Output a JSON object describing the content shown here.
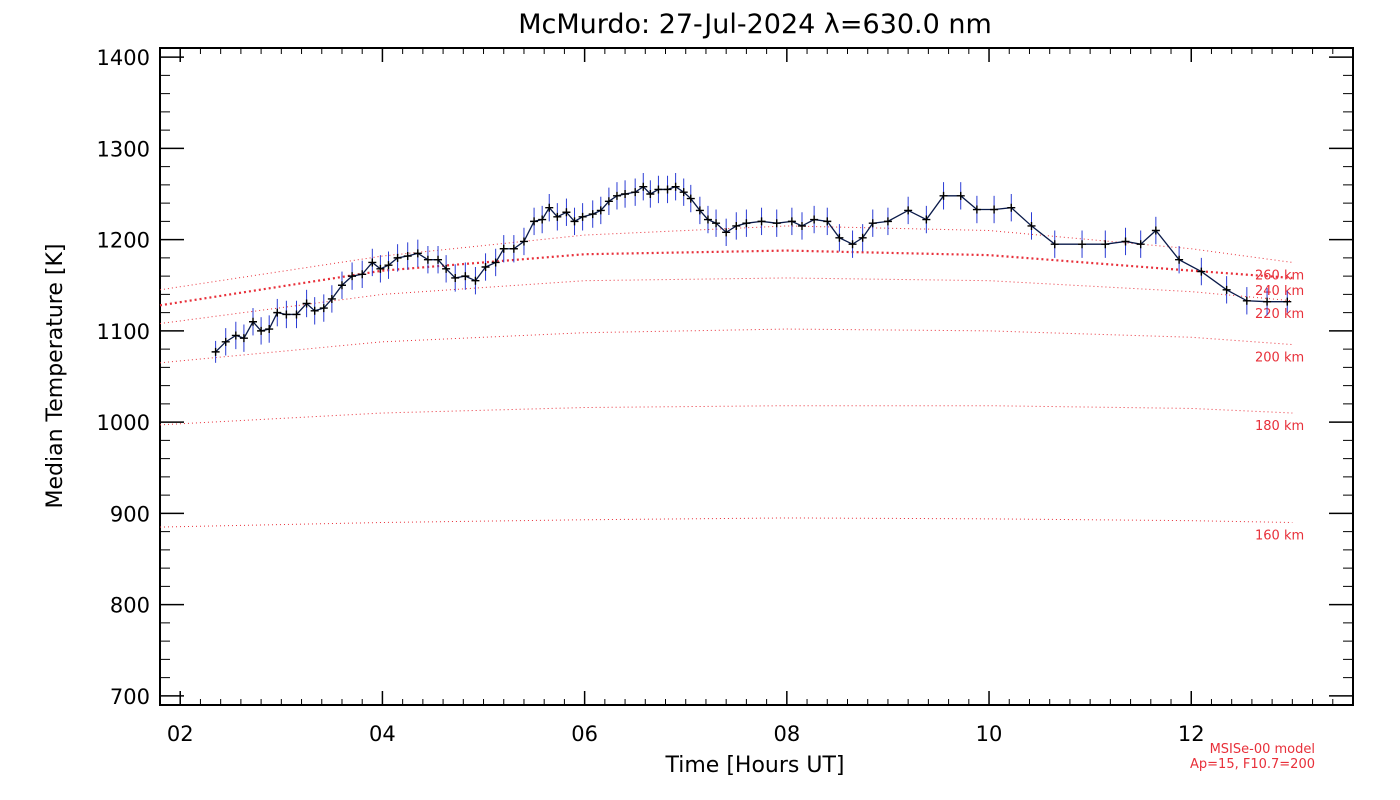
{
  "chart_data": {
    "type": "line",
    "title": "McMurdo: 27-Jul-2024 λ=630.0 nm",
    "xlabel": "Time [Hours UT]",
    "ylabel": "Median Temperature [K]",
    "xlim": [
      1.8,
      13.6
    ],
    "ylim": [
      690,
      1410
    ],
    "xticks": [
      2,
      4,
      6,
      8,
      10,
      12
    ],
    "xtick_labels": [
      "02",
      "04",
      "06",
      "08",
      "10",
      "12"
    ],
    "yticks": [
      700,
      800,
      900,
      1000,
      1100,
      1200,
      1300,
      1400
    ],
    "ytick_labels": [
      "700",
      "800",
      "900",
      "1000",
      "1100",
      "1200",
      "1300",
      "1400"
    ],
    "grid": false,
    "series": [
      {
        "name": "",
        "color": "#0a1a4a",
        "error_color": "#2a3bd4",
        "x": [
          2.35,
          2.45,
          2.55,
          2.63,
          2.72,
          2.8,
          2.88,
          2.96,
          3.05,
          3.15,
          3.25,
          3.33,
          3.42,
          3.5,
          3.6,
          3.7,
          3.8,
          3.9,
          3.98,
          4.06,
          4.15,
          4.25,
          4.35,
          4.45,
          4.55,
          4.63,
          4.72,
          4.82,
          4.92,
          5.02,
          5.12,
          5.2,
          5.3,
          5.4,
          5.5,
          5.58,
          5.65,
          5.73,
          5.82,
          5.9,
          5.98,
          6.08,
          6.16,
          6.24,
          6.32,
          6.4,
          6.5,
          6.58,
          6.65,
          6.73,
          6.82,
          6.9,
          6.98,
          7.05,
          7.14,
          7.22,
          7.3,
          7.4,
          7.5,
          7.6,
          7.75,
          7.9,
          8.05,
          8.15,
          8.27,
          8.4,
          8.52,
          8.65,
          8.75,
          8.85,
          9.0,
          9.2,
          9.38,
          9.55,
          9.72,
          9.88,
          10.05,
          10.22,
          10.42,
          10.65,
          10.92,
          11.15,
          11.35,
          11.5,
          11.65,
          11.88,
          12.1,
          12.35,
          12.55,
          12.75,
          12.95
        ],
        "y": [
          1077,
          1088,
          1095,
          1092,
          1110,
          1100,
          1102,
          1120,
          1118,
          1118,
          1130,
          1122,
          1125,
          1135,
          1150,
          1160,
          1162,
          1175,
          1168,
          1172,
          1180,
          1182,
          1185,
          1178,
          1178,
          1168,
          1158,
          1160,
          1155,
          1170,
          1175,
          1190,
          1190,
          1198,
          1220,
          1222,
          1235,
          1225,
          1230,
          1220,
          1225,
          1228,
          1232,
          1242,
          1248,
          1250,
          1252,
          1258,
          1250,
          1255,
          1255,
          1258,
          1252,
          1245,
          1232,
          1222,
          1218,
          1208,
          1215,
          1218,
          1220,
          1218,
          1220,
          1215,
          1222,
          1220,
          1202,
          1195,
          1202,
          1218,
          1220,
          1232,
          1222,
          1248,
          1248,
          1233,
          1233,
          1235,
          1215,
          1195,
          1195,
          1195,
          1198,
          1195,
          1210,
          1178,
          1165,
          1145,
          1133,
          1132,
          1132
        ],
        "err": [
          12,
          15,
          15,
          15,
          15,
          15,
          15,
          15,
          15,
          15,
          15,
          15,
          15,
          15,
          15,
          15,
          15,
          15,
          15,
          15,
          15,
          15,
          15,
          15,
          15,
          15,
          15,
          15,
          15,
          15,
          15,
          15,
          15,
          15,
          15,
          15,
          15,
          15,
          15,
          15,
          15,
          15,
          15,
          15,
          15,
          15,
          15,
          15,
          15,
          15,
          15,
          15,
          15,
          15,
          15,
          15,
          15,
          15,
          15,
          15,
          15,
          15,
          15,
          15,
          15,
          15,
          15,
          15,
          15,
          15,
          15,
          15,
          15,
          15,
          15,
          15,
          15,
          15,
          15,
          15,
          15,
          15,
          15,
          15,
          15,
          15,
          15,
          15,
          15,
          15,
          12
        ]
      }
    ],
    "model_curves": [
      {
        "label": "260 km",
        "color": "#e8303a",
        "x": [
          1.8,
          4,
          6,
          8,
          10,
          12,
          13.0
        ],
        "y": [
          1145,
          1182,
          1205,
          1215,
          1210,
          1190,
          1175
        ]
      },
      {
        "label": "240 km",
        "color": "#e8303a",
        "x": [
          1.8,
          4,
          6,
          8,
          10,
          12,
          13.0
        ],
        "y": [
          1128,
          1166,
          1184,
          1188,
          1183,
          1166,
          1158
        ],
        "emphasis": true
      },
      {
        "label": "220 km",
        "color": "#e8303a",
        "x": [
          1.8,
          4,
          6,
          8,
          10,
          12,
          13.0
        ],
        "y": [
          1108,
          1140,
          1155,
          1158,
          1155,
          1143,
          1133
        ]
      },
      {
        "label": "200 km",
        "color": "#e8303a",
        "x": [
          1.8,
          4,
          6,
          8,
          10,
          12,
          13.0
        ],
        "y": [
          1065,
          1088,
          1098,
          1102,
          1100,
          1093,
          1085
        ]
      },
      {
        "label": "180 km",
        "color": "#e8303a",
        "x": [
          1.8,
          4,
          6,
          8,
          10,
          12,
          13.0
        ],
        "y": [
          997,
          1010,
          1016,
          1018,
          1018,
          1015,
          1010
        ]
      },
      {
        "label": "160 km",
        "color": "#e8303a",
        "x": [
          1.8,
          4,
          6,
          8,
          10,
          12,
          13.0
        ],
        "y": [
          885,
          890,
          893,
          895,
          894,
          892,
          890
        ]
      }
    ],
    "annotations": [
      "MSISe-00 model",
      "Ap=15, F10.7=200"
    ]
  }
}
